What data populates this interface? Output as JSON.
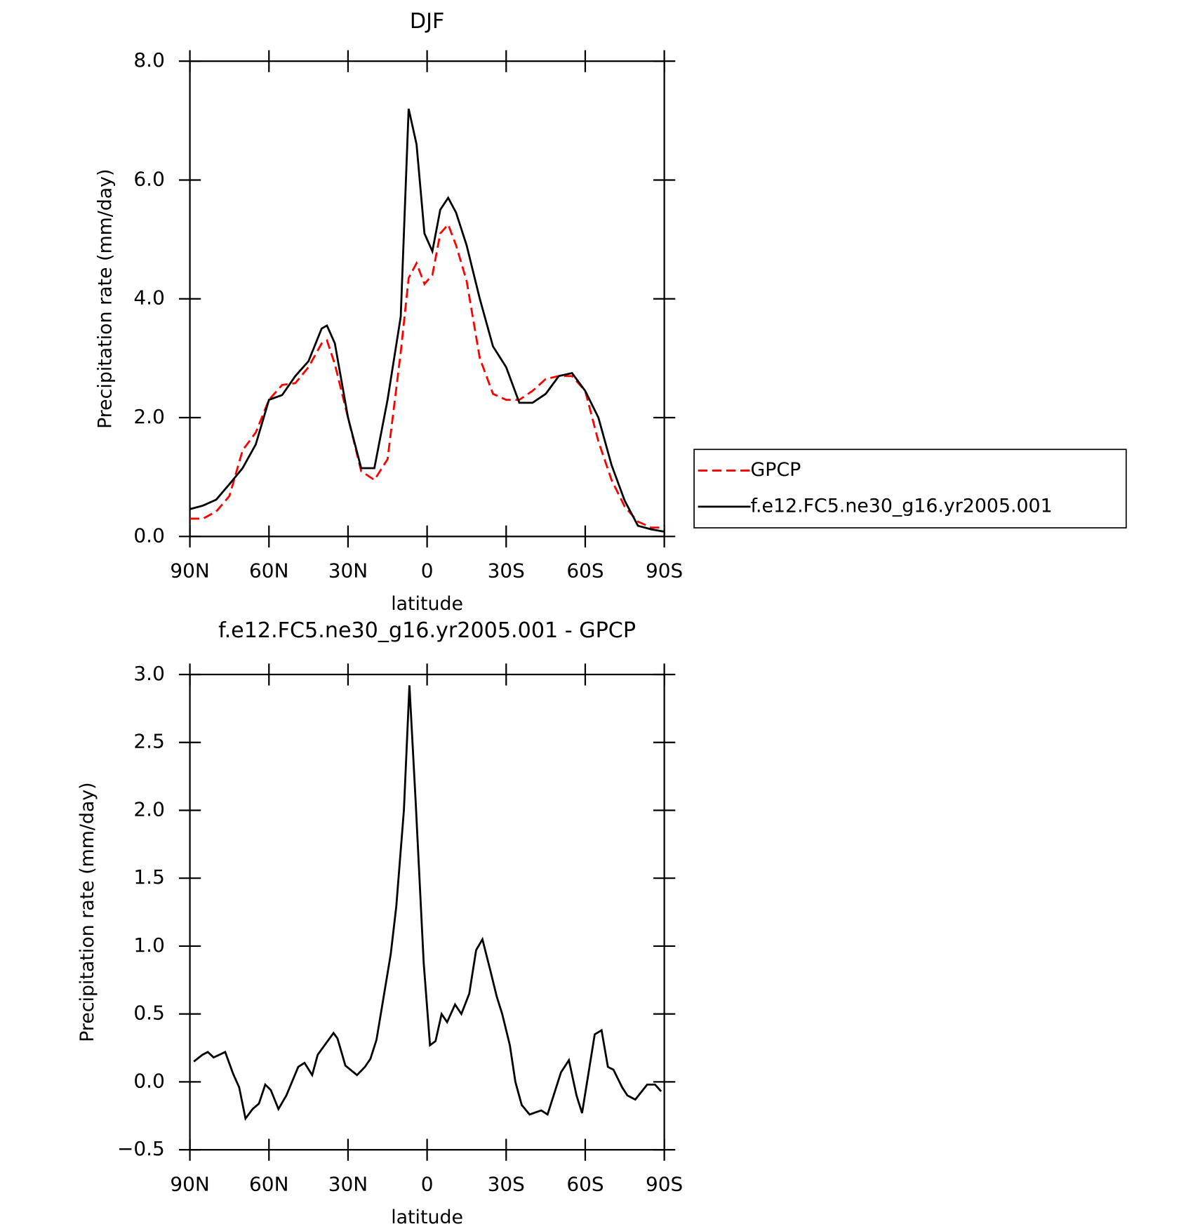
{
  "chart_data": [
    {
      "type": "line",
      "title": "DJF",
      "xlabel": "latitude",
      "ylabel": "Precipitation rate (mm/day)",
      "x": [
        90,
        85,
        80,
        75,
        70,
        65,
        60,
        55,
        50,
        45,
        40,
        38,
        35,
        30,
        25,
        20,
        15,
        10,
        7,
        4,
        1,
        -2,
        -5,
        -8,
        -11,
        -15,
        -20,
        -25,
        -30,
        -35,
        -40,
        -45,
        -50,
        -55,
        -60,
        -65,
        -70,
        -75,
        -80,
        -85,
        -90
      ],
      "series": [
        {
          "name": "GPCP",
          "color": "#ff0000",
          "dashed": true,
          "values": [
            0.3,
            0.3,
            0.42,
            0.68,
            1.45,
            1.75,
            2.3,
            2.55,
            2.58,
            2.85,
            3.25,
            3.3,
            2.9,
            2.0,
            1.1,
            0.95,
            1.3,
            3.1,
            4.35,
            4.6,
            4.25,
            4.4,
            5.1,
            5.25,
            4.9,
            4.3,
            3.0,
            2.4,
            2.3,
            2.3,
            2.45,
            2.65,
            2.7,
            2.7,
            2.45,
            1.6,
            0.95,
            0.5,
            0.25,
            0.15,
            0.15
          ]
        },
        {
          "name": "f.e12.FC5.ne30_g16.yr2005.001",
          "color": "#000000",
          "dashed": false,
          "values": [
            0.46,
            0.52,
            0.62,
            0.88,
            1.15,
            1.55,
            2.3,
            2.38,
            2.7,
            2.95,
            3.5,
            3.55,
            3.25,
            2.0,
            1.15,
            1.15,
            2.3,
            3.7,
            7.2,
            6.6,
            5.1,
            4.8,
            5.5,
            5.7,
            5.45,
            4.9,
            4.0,
            3.2,
            2.85,
            2.25,
            2.25,
            2.4,
            2.7,
            2.75,
            2.45,
            2.0,
            1.2,
            0.6,
            0.18,
            0.12,
            0.08
          ]
        }
      ],
      "xlim": [
        90,
        -90
      ],
      "xticks": [
        {
          "value": 90,
          "label": "90N"
        },
        {
          "value": 60,
          "label": "60N"
        },
        {
          "value": 30,
          "label": "30N"
        },
        0,
        {
          "value": -30,
          "label": "30S"
        },
        {
          "value": -60,
          "label": "60S"
        },
        {
          "value": -90,
          "label": "90S"
        }
      ],
      "ylim": [
        0,
        8
      ],
      "yticks": [
        {
          "value": 0,
          "label": "0.0"
        },
        {
          "value": 2,
          "label": "2.0"
        },
        {
          "value": 4,
          "label": "4.0"
        },
        {
          "value": 6,
          "label": "6.0"
        },
        {
          "value": 8,
          "label": "8.0"
        }
      ],
      "legend": "right"
    },
    {
      "type": "line",
      "title": "f.e12.FC5.ne30_g16.yr2005.001 - GPCP",
      "xlabel": "latitude",
      "ylabel": "Precipitation rate (mm/day)",
      "x": [
        88.5,
        85.2,
        83.2,
        81,
        76.6,
        73.6,
        71.3,
        68.9,
        66.2,
        63.8,
        61.4,
        59.3,
        56.4,
        53.4,
        48.9,
        46.5,
        43.6,
        41.5,
        35.5,
        34,
        31,
        26.6,
        23.6,
        21.5,
        19.2,
        16.2,
        13.8,
        11.7,
        8.8,
        6.7,
        4.3,
        1.3,
        -1.1,
        -3.2,
        -5.5,
        -7.6,
        -10.6,
        -13,
        -16,
        -18.6,
        -21,
        -24,
        -26.4,
        -28.5,
        -31.4,
        -33.5,
        -35.9,
        -38.9,
        -43.3,
        -45.7,
        -50.8,
        -53.8,
        -56.7,
        -58.8,
        -63.6,
        -66.2,
        -68.6,
        -70.7,
        -74,
        -76,
        -79,
        -83.5,
        -86.5,
        -88.8
      ],
      "values": [
        0.15,
        0.2,
        0.22,
        0.18,
        0.22,
        0.06,
        -0.04,
        -0.27,
        -0.2,
        -0.16,
        -0.02,
        -0.06,
        -0.2,
        -0.1,
        0.11,
        0.14,
        0.05,
        0.2,
        0.36,
        0.32,
        0.12,
        0.05,
        0.11,
        0.17,
        0.31,
        0.66,
        0.94,
        1.29,
        2.0,
        2.92,
        2.05,
        0.88,
        0.27,
        0.3,
        0.5,
        0.44,
        0.57,
        0.5,
        0.65,
        0.97,
        1.05,
        0.82,
        0.63,
        0.5,
        0.27,
        0,
        -0.17,
        -0.24,
        -0.21,
        -0.24,
        0.07,
        0.16,
        -0.1,
        -0.23,
        0.35,
        0.38,
        0.11,
        0.09,
        -0.04,
        -0.1,
        -0.13,
        -0.02,
        -0.02,
        -0.07
      ],
      "color": "#000000",
      "xlim": [
        90,
        -90
      ],
      "xticks": [
        {
          "value": 90,
          "label": "90N"
        },
        {
          "value": 60,
          "label": "60N"
        },
        {
          "value": 30,
          "label": "30N"
        },
        0,
        {
          "value": -30,
          "label": "30S"
        },
        {
          "value": -60,
          "label": "60S"
        },
        {
          "value": -90,
          "label": "90S"
        }
      ],
      "ylim": [
        -0.5,
        3
      ],
      "yticks": [
        {
          "value": -0.5,
          "label": "−0.5"
        },
        {
          "value": 0,
          "label": "0.0"
        },
        {
          "value": 0.5,
          "label": "0.5"
        },
        {
          "value": 1,
          "label": "1.0"
        },
        {
          "value": 1.5,
          "label": "1.5"
        },
        {
          "value": 2,
          "label": "2.0"
        },
        {
          "value": 2.5,
          "label": "2.5"
        },
        {
          "value": 3,
          "label": "3.0"
        }
      ]
    }
  ]
}
